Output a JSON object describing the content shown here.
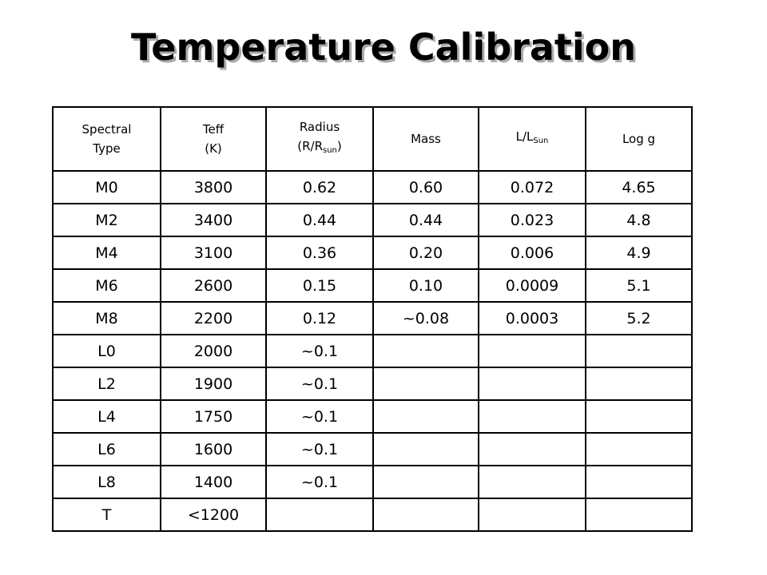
{
  "title": "Temperature Calibration",
  "table": {
    "columns": [
      {
        "line1": "Spectral",
        "line2": "Type"
      },
      {
        "line1": "Teff",
        "line2": "(K)"
      },
      {
        "line1": "Radius",
        "line2": "(R/R",
        "sub": "sun",
        "tail": ")"
      },
      {
        "line1": "Mass"
      },
      {
        "line1": "L/L",
        "sub": "Sun"
      },
      {
        "line1": "Log g"
      }
    ],
    "rows": [
      [
        "M0",
        "3800",
        "0.62",
        "0.60",
        "0.072",
        "4.65"
      ],
      [
        "M2",
        "3400",
        "0.44",
        "0.44",
        "0.023",
        "4.8"
      ],
      [
        "M4",
        "3100",
        "0.36",
        "0.20",
        "0.006",
        "4.9"
      ],
      [
        "M6",
        "2600",
        "0.15",
        "0.10",
        "0.0009",
        "5.1"
      ],
      [
        "M8",
        "2200",
        "0.12",
        "~0.08",
        "0.0003",
        "5.2"
      ],
      [
        "L0",
        "2000",
        "~0.1"
      ],
      [
        "L2",
        "1900",
        "~0.1"
      ],
      [
        "L4",
        "1750",
        "~0.1"
      ],
      [
        "L6",
        "1600",
        "~0.1"
      ],
      [
        "L8",
        "1400",
        "~0.1"
      ],
      [
        "T",
        "<1200"
      ]
    ]
  }
}
